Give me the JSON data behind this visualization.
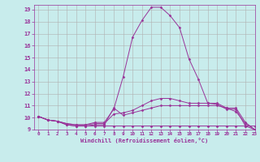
{
  "xlabel": "Windchill (Refroidissement éolien,°C)",
  "background_color": "#c8ecec",
  "grid_color": "#b0b0b0",
  "line_color": "#993399",
  "xlim": [
    -0.5,
    23
  ],
  "ylim": [
    9,
    19.4
  ],
  "yticks": [
    9,
    10,
    11,
    12,
    13,
    14,
    15,
    16,
    17,
    18,
    19
  ],
  "xticks": [
    0,
    1,
    2,
    3,
    4,
    5,
    6,
    7,
    8,
    9,
    10,
    11,
    12,
    13,
    14,
    15,
    16,
    17,
    18,
    19,
    20,
    21,
    22,
    23
  ],
  "series": [
    [
      10.1,
      9.8,
      9.7,
      9.4,
      9.3,
      9.3,
      9.3,
      9.3,
      9.3,
      9.3,
      9.3,
      9.3,
      9.3,
      9.3,
      9.3,
      9.3,
      9.3,
      9.3,
      9.3,
      9.3,
      9.3,
      9.3,
      9.3,
      9.3
    ],
    [
      10.1,
      9.8,
      9.7,
      9.4,
      9.3,
      9.3,
      9.4,
      9.4,
      10.8,
      10.2,
      10.4,
      10.6,
      10.8,
      11.0,
      11.0,
      11.0,
      11.0,
      11.0,
      11.0,
      11.0,
      10.8,
      10.5,
      9.5,
      9.0
    ],
    [
      10.1,
      9.8,
      9.7,
      9.5,
      9.4,
      9.4,
      9.5,
      9.5,
      10.3,
      10.4,
      10.6,
      11.0,
      11.4,
      11.6,
      11.6,
      11.4,
      11.2,
      11.2,
      11.2,
      11.2,
      10.8,
      10.8,
      9.6,
      9.0
    ],
    [
      10.1,
      9.8,
      9.7,
      9.5,
      9.4,
      9.4,
      9.6,
      9.6,
      10.7,
      13.4,
      16.7,
      18.1,
      19.2,
      19.2,
      18.5,
      17.5,
      14.9,
      13.2,
      11.2,
      11.1,
      10.7,
      10.7,
      9.3,
      9.0
    ]
  ]
}
